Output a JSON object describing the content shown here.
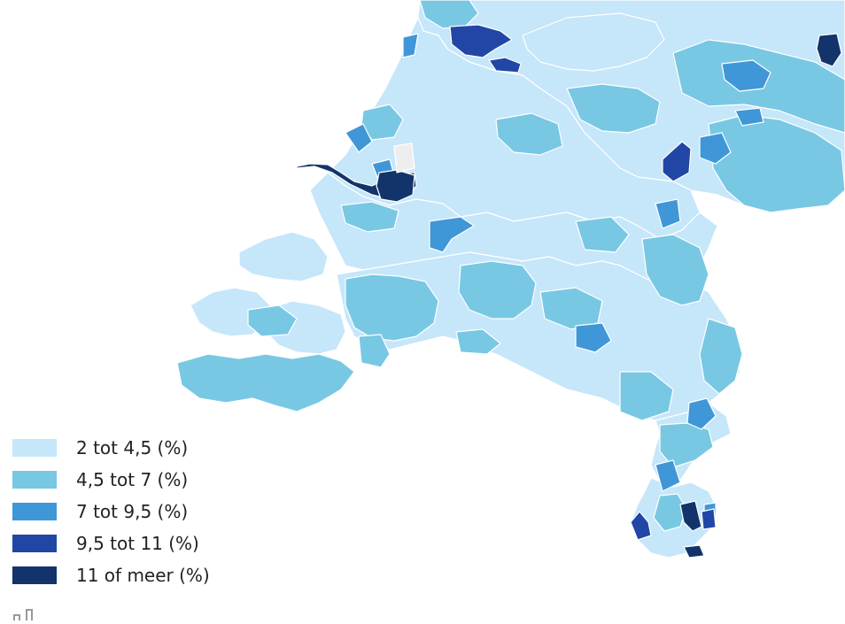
{
  "map": {
    "land_stroke": "#ffffff",
    "no_data_color": "#eeeeee"
  },
  "legend": {
    "items": [
      {
        "label": "2 tot 4,5 (%)",
        "color": "#c6e6fa"
      },
      {
        "label": "4,5 tot 7 (%)",
        "color": "#78c8e4"
      },
      {
        "label": "7 tot 9,5 (%)",
        "color": "#3f97d7"
      },
      {
        "label": "9,5 tot 11 (%)",
        "color": "#2146a6"
      },
      {
        "label": "11 of meer (%)",
        "color": "#13346a"
      }
    ]
  },
  "icons": {
    "toolbar": "chart-tool-icon"
  }
}
